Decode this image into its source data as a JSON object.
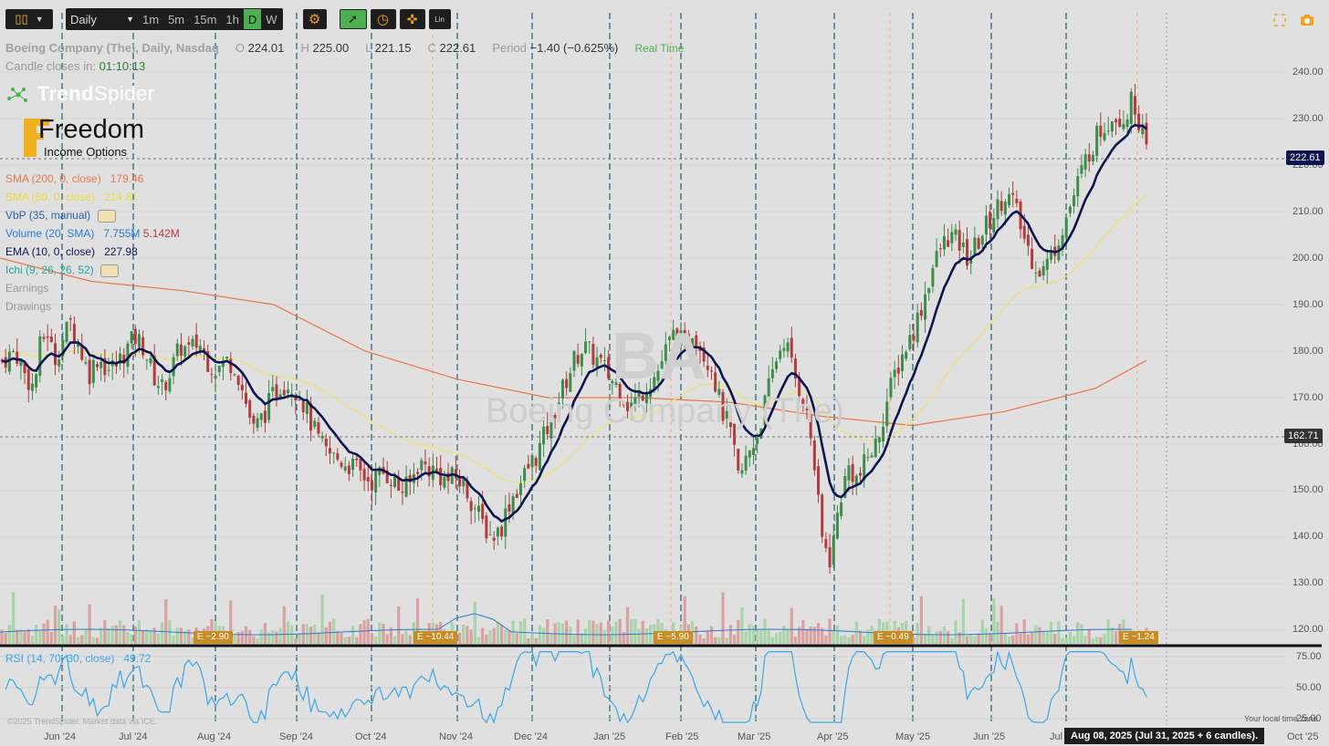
{
  "toolbar": {
    "timeframe_select": "Daily",
    "intervals": [
      "1m",
      "5m",
      "15m",
      "1h",
      "D",
      "W"
    ],
    "active_interval": "D",
    "scale_label": "Lin"
  },
  "header": {
    "title": "Boeing Company (The), Daily, Nasdaq",
    "open_label": "O",
    "open": "224.01",
    "high_label": "H",
    "high": "225.00",
    "low_label": "L",
    "low": "221.15",
    "close_label": "C",
    "close": "222.61",
    "period_label": "Period",
    "period": "−1.40 (−0.625%)",
    "realtime": "Real Time",
    "candle_label": "Candle closes in:",
    "candle_value": "01:10:13"
  },
  "branding": {
    "logo": "TrendSpider",
    "logo_part1": "Trend",
    "logo_part2": "Spider",
    "logo2_big": "Freedom",
    "logo2_small": "Income Options",
    "watermark_symbol": "BA",
    "watermark_name": "Boeing Company (The)"
  },
  "indicators": [
    {
      "label": "SMA (200, 0, close)",
      "value": "179.46",
      "color": "#e8764a"
    },
    {
      "label": "SMA (50, 0, close)",
      "value": "214.81",
      "color": "#e8d440"
    },
    {
      "label": "VbP (35, manual)",
      "value": "",
      "color": "#2b5ea8"
    },
    {
      "label": "Volume (20, SMA)",
      "value": "7.755M",
      "value2": "5.142M",
      "color": "#2b7bd0"
    },
    {
      "label": "EMA (10, 0, close)",
      "value": "227.98",
      "color": "#0d1550"
    },
    {
      "label": "Ichi (9, 26, 26, 52)",
      "value": "",
      "color": "#26a69a"
    },
    {
      "label": "Earnings",
      "value": "",
      "color": "#999999"
    },
    {
      "label": "Drawings",
      "value": "",
      "color": "#999999"
    }
  ],
  "price_axis": {
    "ticks": [
      "240.00",
      "230.00",
      "220.00",
      "210.00",
      "200.00",
      "190.00",
      "180.00",
      "170.00",
      "160.00",
      "150.00",
      "140.00",
      "130.00",
      "120.00"
    ],
    "current_price": "222.61",
    "crosshair_price": "162.71"
  },
  "rsi": {
    "label": "RSI (14, 70, 30, close)",
    "value": "49.72",
    "ticks": [
      "75.00",
      "50.00",
      "25.00"
    ]
  },
  "time_axis": [
    "Jun '24",
    "Jul '24",
    "Aug '24",
    "Sep '24",
    "Oct '24",
    "Nov '24",
    "Dec '24",
    "Jan '25",
    "Feb '25",
    "Mar '25",
    "Apr '25",
    "May '25",
    "Jun '25",
    "Jul",
    "Oct '25"
  ],
  "earnings": [
    "E −2.90",
    "E −10.44",
    "E −5.90",
    "E −0.49",
    "E −1.24"
  ],
  "footer": {
    "copyright": "©2025 TrendSpider. Market data via ICE.",
    "local_time": "Your local time zone",
    "tooltip": "Aug 08, 2025 (Jul 31, 2025 + 6 candles)."
  },
  "colors": {
    "background": "#e0e0e0",
    "up": "#3d8c4a",
    "down": "#b33b3b",
    "ema": "#0d1550",
    "sma200": "#e8764a",
    "sma50": "#f0e070",
    "rsi": "#3aa7e8",
    "vline": "#1f5f6f"
  },
  "chart_data": {
    "type": "candlestick",
    "ylim": [
      120,
      245
    ],
    "close_path": [
      [
        0,
        178
      ],
      [
        6,
        180
      ],
      [
        10,
        175
      ],
      [
        14,
        172
      ],
      [
        17,
        182
      ],
      [
        20,
        184
      ],
      [
        23,
        178
      ],
      [
        26,
        182
      ],
      [
        30,
        186
      ],
      [
        34,
        181
      ],
      [
        38,
        175
      ],
      [
        42,
        179
      ],
      [
        46,
        176
      ],
      [
        50,
        177
      ],
      [
        54,
        180
      ],
      [
        58,
        183
      ],
      [
        62,
        181
      ],
      [
        66,
        175
      ],
      [
        70,
        172
      ],
      [
        74,
        176
      ],
      [
        78,
        181
      ],
      [
        82,
        180
      ],
      [
        86,
        182
      ],
      [
        90,
        178
      ],
      [
        94,
        176
      ],
      [
        98,
        178
      ],
      [
        102,
        177
      ],
      [
        106,
        170
      ],
      [
        110,
        163
      ],
      [
        114,
        166
      ],
      [
        118,
        170
      ],
      [
        122,
        173
      ],
      [
        126,
        173
      ],
      [
        130,
        171
      ],
      [
        134,
        166
      ],
      [
        138,
        161
      ],
      [
        142,
        158
      ],
      [
        146,
        157
      ],
      [
        150,
        156
      ],
      [
        154,
        155
      ],
      [
        158,
        153
      ],
      [
        162,
        152
      ],
      [
        166,
        154
      ],
      [
        170,
        153
      ],
      [
        174,
        150
      ],
      [
        178,
        151
      ],
      [
        182,
        156
      ],
      [
        186,
        155
      ],
      [
        190,
        154
      ],
      [
        194,
        152
      ],
      [
        198,
        153
      ],
      [
        202,
        151
      ],
      [
        206,
        147
      ],
      [
        210,
        143
      ],
      [
        214,
        140
      ],
      [
        218,
        142
      ],
      [
        222,
        148
      ],
      [
        226,
        151
      ],
      [
        230,
        155
      ],
      [
        234,
        158
      ],
      [
        238,
        163
      ],
      [
        242,
        168
      ],
      [
        246,
        173
      ],
      [
        250,
        178
      ],
      [
        254,
        181
      ],
      [
        258,
        179
      ],
      [
        262,
        177
      ],
      [
        266,
        174
      ],
      [
        270,
        172
      ],
      [
        274,
        168
      ],
      [
        278,
        170
      ],
      [
        282,
        173
      ],
      [
        286,
        175
      ],
      [
        290,
        180
      ],
      [
        294,
        184
      ],
      [
        298,
        181
      ],
      [
        302,
        185
      ],
      [
        306,
        180
      ],
      [
        310,
        177
      ],
      [
        314,
        168
      ],
      [
        318,
        163
      ],
      [
        322,
        152
      ],
      [
        326,
        158
      ],
      [
        330,
        162
      ],
      [
        334,
        170
      ],
      [
        338,
        178
      ],
      [
        342,
        183
      ],
      [
        346,
        175
      ],
      [
        350,
        170
      ],
      [
        354,
        160
      ],
      [
        358,
        140
      ],
      [
        362,
        135
      ],
      [
        366,
        148
      ],
      [
        370,
        155
      ],
      [
        374,
        152
      ],
      [
        378,
        157
      ],
      [
        382,
        160
      ],
      [
        386,
        168
      ],
      [
        390,
        175
      ],
      [
        394,
        180
      ],
      [
        398,
        184
      ],
      [
        402,
        190
      ],
      [
        406,
        197
      ],
      [
        410,
        202
      ],
      [
        414,
        205
      ],
      [
        418,
        203
      ],
      [
        422,
        200
      ],
      [
        426,
        203
      ],
      [
        430,
        207
      ],
      [
        434,
        210
      ],
      [
        438,
        214
      ],
      [
        442,
        212
      ],
      [
        446,
        205
      ],
      [
        450,
        200
      ],
      [
        454,
        197
      ],
      [
        458,
        200
      ],
      [
        462,
        205
      ],
      [
        466,
        210
      ],
      [
        470,
        216
      ],
      [
        474,
        222
      ],
      [
        478,
        226
      ],
      [
        482,
        229
      ],
      [
        486,
        231
      ],
      [
        490,
        230
      ],
      [
        494,
        234
      ],
      [
        498,
        228
      ],
      [
        500,
        222
      ]
    ]
  }
}
